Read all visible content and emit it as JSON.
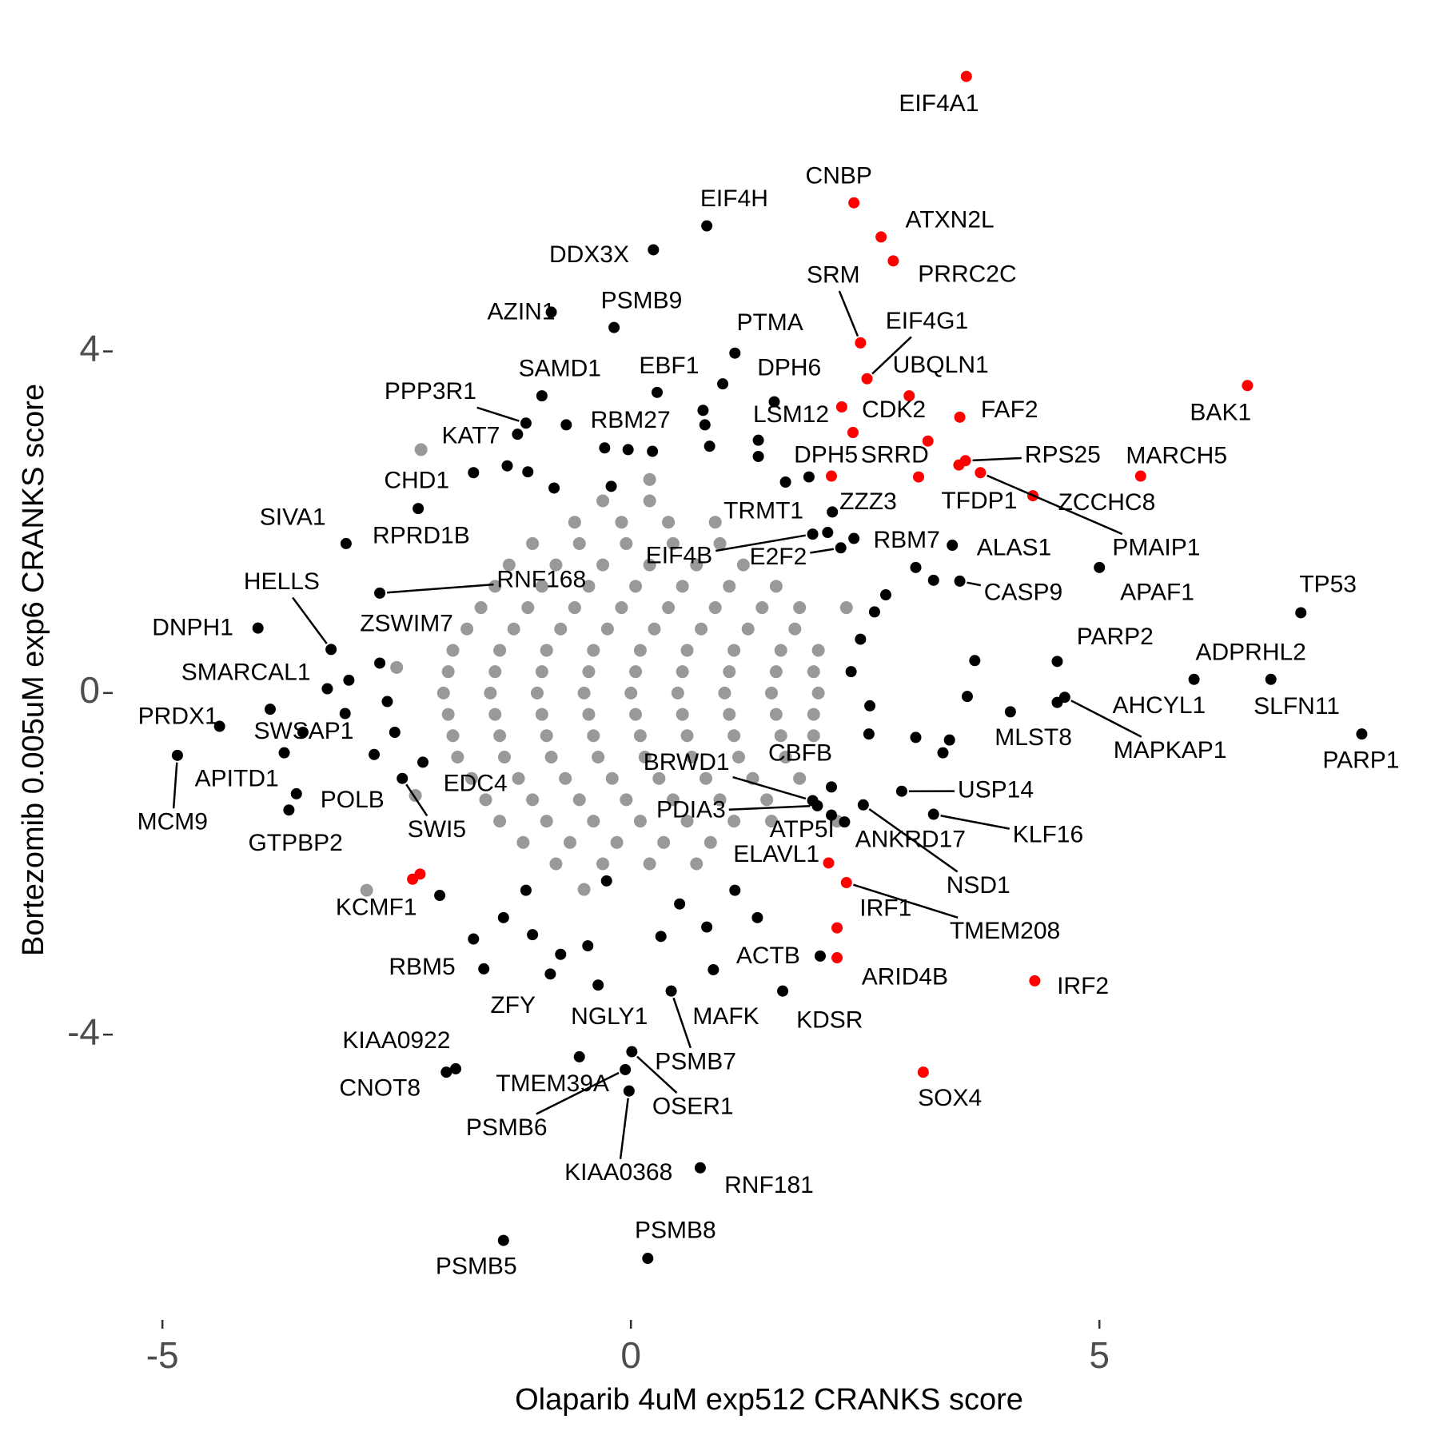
{
  "chart_data": {
    "type": "scatter",
    "x_label": "Olaparib 4uM exp512 CRANKS score",
    "y_label": "Bortezomib 0.005uM exp6 CRANKS score",
    "xlim": [
      -5.3,
      8.3
    ],
    "ylim": [
      -7.2,
      7.6
    ],
    "xticks": [
      -5,
      0,
      5
    ],
    "yticks": [
      -4,
      0,
      4
    ],
    "grid": false,
    "series": [
      {
        "color": "#999999",
        "x": [
          -0.6,
          -0.1,
          0.4,
          0.9,
          -1.3,
          -0.8,
          -0.3,
          0.2,
          0.7,
          1.2,
          -1.6,
          -1.1,
          -0.6,
          -0.1,
          0.4,
          0.9,
          1.4,
          1.8,
          -1.9,
          -1.4,
          -0.9,
          -0.4,
          0.1,
          0.6,
          1.1,
          1.6,
          2.0,
          -2.0,
          -1.5,
          -1.0,
          -0.5,
          0,
          0.5,
          1.0,
          1.5,
          2.0,
          -1.9,
          -1.4,
          -0.9,
          -0.4,
          0.1,
          0.6,
          1.1,
          1.6,
          1.95,
          -1.7,
          -1.2,
          -0.7,
          -0.2,
          0.3,
          0.8,
          1.3,
          1.8,
          -1.4,
          -0.9,
          -0.4,
          0.1,
          0.6,
          1.1,
          1.5,
          -0.8,
          -0.3,
          0.2,
          0.7,
          -0.3,
          0.2,
          -1.05,
          -0.55,
          -0.05,
          0.45,
          0.95,
          -1.45,
          -0.95,
          -0.45,
          0.05,
          0.55,
          1.05,
          1.55,
          -1.75,
          -1.25,
          -0.75,
          -0.25,
          0.25,
          0.75,
          1.25,
          1.75,
          -1.95,
          -1.45,
          -0.95,
          -0.45,
          0.05,
          0.55,
          1.05,
          1.55,
          1.95,
          -1.95,
          -1.45,
          -0.95,
          -0.45,
          0.05,
          0.55,
          1.05,
          1.55,
          1.95,
          -1.85,
          -1.35,
          -0.85,
          -0.35,
          0.15,
          0.65,
          1.15,
          1.65,
          -1.55,
          -1.05,
          -0.55,
          -0.05,
          0.45,
          0.95,
          1.45,
          -1.15,
          -0.65,
          -0.15,
          0.35,
          0.85,
          -2.24,
          -2.82,
          -2.5,
          2.3,
          2.2,
          -2.3,
          0.2,
          -0.5
        ],
        "values": [
          2,
          2,
          2,
          2,
          1.5,
          1.5,
          1.5,
          1.5,
          1.5,
          1.5,
          1,
          1,
          1,
          1,
          1,
          1,
          1,
          1,
          0.5,
          0.5,
          0.5,
          0.5,
          0.5,
          0.5,
          0.5,
          0.5,
          0.5,
          0,
          0,
          0,
          0,
          0,
          0,
          0,
          0,
          0,
          -0.5,
          -0.5,
          -0.5,
          -0.5,
          -0.5,
          -0.5,
          -0.5,
          -0.5,
          -0.5,
          -1,
          -1,
          -1,
          -1,
          -1,
          -1,
          -1,
          -1,
          -1.5,
          -1.5,
          -1.5,
          -1.5,
          -1.5,
          -1.5,
          -1.5,
          -2,
          -2,
          -2,
          -2,
          2.25,
          2.25,
          1.75,
          1.75,
          1.75,
          1.75,
          1.75,
          1.25,
          1.25,
          1.25,
          1.25,
          1.25,
          1.25,
          1.25,
          0.75,
          0.75,
          0.75,
          0.75,
          0.75,
          0.75,
          0.75,
          0.75,
          0.25,
          0.25,
          0.25,
          0.25,
          0.25,
          0.25,
          0.25,
          0.25,
          0.25,
          -0.25,
          -0.25,
          -0.25,
          -0.25,
          -0.25,
          -0.25,
          -0.25,
          -0.25,
          -0.25,
          -0.75,
          -0.75,
          -0.75,
          -0.75,
          -0.75,
          -0.75,
          -0.75,
          -0.75,
          -1.25,
          -1.25,
          -1.25,
          -1.25,
          -1.25,
          -1.25,
          -1.25,
          -1.75,
          -1.75,
          -1.75,
          -1.75,
          -1.75,
          2.85,
          -2.31,
          0.3,
          1.0,
          -1.5,
          -1.2,
          2.5,
          -2.3
        ]
      },
      {
        "color": "#000000",
        "x": [
          0.81,
          0.24,
          -0.18,
          -0.85,
          1.11,
          -0.95,
          0.28,
          0.98,
          1.53,
          -1.12,
          -1.21,
          -0.69,
          -2.27,
          -3.04,
          -1.68,
          -2.68,
          -3.2,
          -2.68,
          -3.98,
          -3.24,
          -4.39,
          -3.85,
          -4.84,
          -3.7,
          -3.57,
          -3.65,
          -2.22,
          -2.44,
          1.94,
          2.1,
          2.15,
          2.24,
          2.38,
          3.43,
          3.51,
          5.0,
          7.15,
          4.55,
          6.01,
          4.55,
          6.83,
          4.63,
          4.05,
          7.8,
          2.89,
          3.23,
          2.14,
          1.94,
          1.99,
          2.14,
          2.28,
          2.48,
          2.02,
          1.62,
          0.88,
          -0.35,
          0.43,
          -0.86,
          -1.57,
          -1.87,
          -1.97,
          -0.55,
          -0.06,
          0.01,
          -0.02,
          0.74,
          0.18,
          -1.36,
          -0.28,
          -0.03,
          0.23,
          0.77,
          0.79,
          0.84,
          1.36,
          1.36,
          1.65,
          1.9,
          -1.32,
          -1.1,
          -0.82,
          -0.21,
          3.04,
          3.23,
          2.72,
          2.45,
          3.67,
          3.59,
          3.4,
          3.04,
          3.33,
          2.54,
          -3.01,
          -3.05,
          -3.5,
          -2.74,
          -2.52,
          -2.04,
          -1.68,
          -1.36,
          -1.05,
          -0.75,
          -0.46,
          0.32,
          0.52,
          0.81,
          1.11,
          1.35,
          -1.12,
          -0.26,
          2.35,
          2.55,
          -2.6,
          2.6
        ],
        "values": [
          5.47,
          5.19,
          4.28,
          4.46,
          3.98,
          3.48,
          3.52,
          3.62,
          3.41,
          3.16,
          3.03,
          3.14,
          2.16,
          1.75,
          2.58,
          1.17,
          0.51,
          0.35,
          0.76,
          0.05,
          -0.39,
          -0.19,
          -0.73,
          -0.7,
          -1.18,
          -1.37,
          -0.81,
          -1.0,
          1.86,
          1.88,
          2.12,
          1.7,
          1.81,
          1.73,
          1.31,
          1.47,
          0.94,
          0.37,
          0.16,
          -0.11,
          0.16,
          -0.05,
          -0.22,
          -0.48,
          -1.15,
          -1.42,
          -1.1,
          -1.26,
          -1.32,
          -1.43,
          -1.51,
          -1.31,
          -3.08,
          -3.49,
          -3.24,
          -3.42,
          -3.49,
          -3.29,
          -3.23,
          -4.4,
          -4.44,
          -4.26,
          -4.41,
          -4.2,
          -4.66,
          -5.56,
          -6.62,
          -6.41,
          2.87,
          2.85,
          2.83,
          3.31,
          3.14,
          2.89,
          2.96,
          2.77,
          2.47,
          2.53,
          2.66,
          2.59,
          2.4,
          2.42,
          1.47,
          1.32,
          1.15,
          0.63,
          0.38,
          -0.04,
          -0.55,
          -0.52,
          -0.7,
          -0.48,
          0.15,
          -0.24,
          -0.46,
          -0.72,
          -0.46,
          -2.37,
          -2.88,
          -2.63,
          -2.83,
          -3.06,
          -2.96,
          -2.85,
          -2.47,
          -2.74,
          -2.31,
          -2.63,
          -2.31,
          -2.2,
          0.25,
          -0.15,
          -0.1,
          0.95
        ],
        "labels": [
          "EIF4H",
          "DDX3X",
          "PSMB9",
          "AZIN1",
          "PTMA",
          "SAMD1",
          "EBF1",
          "DPH6",
          "LSM12",
          "PPP3R1",
          "KAT7",
          "RBM27",
          "CHD1",
          "SIVA1",
          "RPRD1B",
          "RNF168",
          "HELLS",
          "ZSWIM7",
          "DNPH1",
          "SMARCAL1",
          "PRDX1",
          "SWSAP1",
          "MCM9",
          "APITD1",
          "POLB",
          "GTPBP2",
          "EDC4",
          "SWI5",
          "EIF4B",
          "TRMT1",
          "ZZZ3",
          "E2F2",
          "RBM7",
          "ALAS1",
          "CASP9",
          "APAF1",
          "TP53",
          "PARP2",
          "ADPRHL2",
          "AHCYL1",
          "SLFN11",
          "MAPKAP1",
          "MLST8",
          "PARP1",
          "USP14",
          "KLF16",
          "CBFB",
          "BRWD1",
          "PDIA3",
          "ATP5I",
          "ANKRD17",
          "NSD1",
          "ACTB",
          "KDSR",
          "MAFK",
          "NGLY1",
          "PSMB7",
          "ZFY",
          "RBM5",
          "KIAA0922",
          "CNOT8",
          "TMEM39A",
          "PSMB6",
          "OSER1",
          "KIAA0368",
          "RNF181",
          "PSMB8",
          "PSMB5",
          null,
          null,
          null,
          null,
          null,
          null,
          null,
          null,
          null,
          null,
          null,
          null,
          null,
          null,
          null,
          null,
          null,
          null,
          null,
          null,
          null,
          null,
          null,
          null,
          null,
          null,
          null,
          null,
          null,
          null,
          null,
          null,
          null,
          null,
          null,
          null,
          null,
          null,
          null,
          null,
          null,
          null,
          null,
          null,
          null,
          null
        ]
      },
      {
        "color": "#ff0000",
        "x": [
          3.58,
          2.38,
          2.67,
          2.8,
          2.45,
          2.52,
          2.97,
          2.25,
          3.51,
          2.14,
          3.07,
          3.57,
          3.5,
          3.73,
          4.29,
          5.44,
          6.58,
          -2.33,
          2.11,
          2.3,
          2.2,
          2.2,
          4.31,
          3.12,
          2.37,
          3.17,
          -2.25
        ],
        "values": [
          7.22,
          5.74,
          5.34,
          5.06,
          4.1,
          3.68,
          3.48,
          3.35,
          3.23,
          2.54,
          2.53,
          2.72,
          2.67,
          2.58,
          2.31,
          2.54,
          3.6,
          -2.18,
          -1.99,
          -2.22,
          -2.75,
          -3.1,
          -3.37,
          -4.44,
          3.05,
          2.95,
          -2.12
        ],
        "labels": [
          "EIF4A1",
          "CNBP",
          "ATXN2L",
          "PRRC2C",
          "SRM",
          "EIF4G1",
          "UBQLN1",
          "CDK2",
          "FAF2",
          "DPH5",
          "SRRD",
          "RPS25",
          "TFDP1",
          "PMAIP1",
          "ZCCHC8",
          "MARCH5",
          "BAK1",
          "KCMF1",
          "ELAVL1",
          "TMEM208",
          "IRF1",
          "ARID4B",
          "IRF2",
          "SOX4",
          null,
          null,
          null
        ]
      }
    ]
  }
}
